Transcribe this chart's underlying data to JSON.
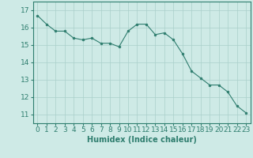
{
  "x": [
    0,
    1,
    2,
    3,
    4,
    5,
    6,
    7,
    8,
    9,
    10,
    11,
    12,
    13,
    14,
    15,
    16,
    17,
    18,
    19,
    20,
    21,
    22,
    23
  ],
  "y": [
    16.7,
    16.2,
    15.8,
    15.8,
    15.4,
    15.3,
    15.4,
    15.1,
    15.1,
    14.9,
    15.8,
    16.2,
    16.2,
    15.6,
    15.7,
    15.3,
    14.5,
    13.5,
    13.1,
    12.7,
    12.7,
    12.3,
    11.5,
    11.1
  ],
  "line_color": "#2e7d6e",
  "marker_color": "#2e7d6e",
  "bg_color": "#ceeae6",
  "grid_color": "#aacfca",
  "xlabel": "Humidex (Indice chaleur)",
  "xlim": [
    -0.5,
    23.5
  ],
  "ylim": [
    10.5,
    17.5
  ],
  "yticks": [
    11,
    12,
    13,
    14,
    15,
    16,
    17
  ],
  "xticks": [
    0,
    1,
    2,
    3,
    4,
    5,
    6,
    7,
    8,
    9,
    10,
    11,
    12,
    13,
    14,
    15,
    16,
    17,
    18,
    19,
    20,
    21,
    22,
    23
  ],
  "label_fontsize": 7,
  "tick_fontsize": 6.5
}
